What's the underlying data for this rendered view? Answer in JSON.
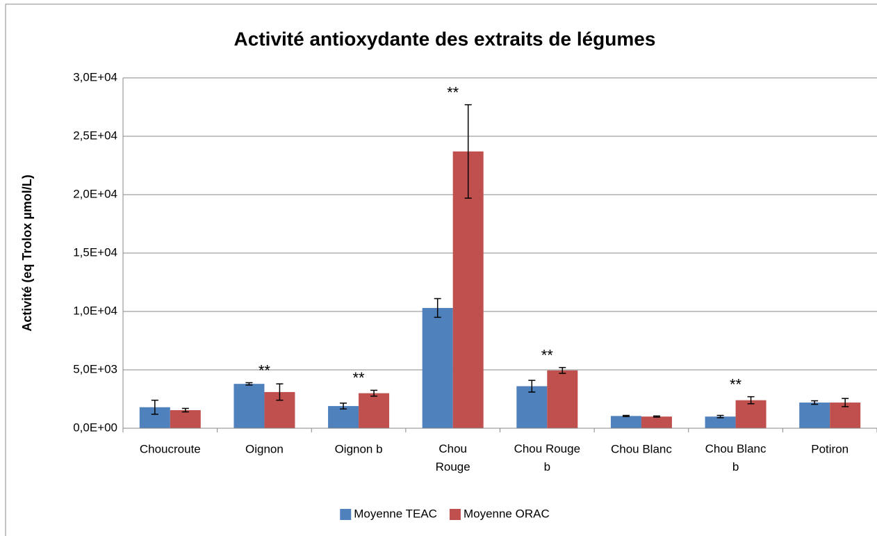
{
  "chart_data": {
    "type": "bar",
    "title": "Activité antioxydante des extraits de légumes",
    "ylabel": "Activité (eq Trolox µmol/L)",
    "categories": [
      "Choucroute",
      "Oignon",
      "Oignon b",
      "Chou Rouge",
      "Chou Rouge b",
      "Chou Blanc",
      "Chou Blanc b",
      "Potiron"
    ],
    "series": [
      {
        "name": "Moyenne TEAC",
        "color": "#4f81bd",
        "values": [
          1800,
          3800,
          1900,
          10300,
          3600,
          1050,
          1000,
          2200
        ],
        "errors": [
          600,
          100,
          250,
          800,
          500,
          50,
          100,
          150
        ]
      },
      {
        "name": "Moyenne ORAC",
        "color": "#c0504d",
        "values": [
          1550,
          3100,
          3000,
          23700,
          4950,
          1000,
          2400,
          2200
        ],
        "errors": [
          150,
          700,
          250,
          4000,
          250,
          50,
          300,
          350
        ]
      }
    ],
    "annotations": [
      null,
      "**",
      "**",
      "**",
      "**",
      null,
      "**",
      null
    ],
    "ylim": [
      0,
      30000
    ],
    "yticks": [
      {
        "value": 0,
        "label": "0,0E+00"
      },
      {
        "value": 5000,
        "label": "5,0E+03"
      },
      {
        "value": 10000,
        "label": "1,0E+04"
      },
      {
        "value": 15000,
        "label": "1,5E+04"
      },
      {
        "value": 20000,
        "label": "2,0E+04"
      },
      {
        "value": 25000,
        "label": "2,5E+04"
      },
      {
        "value": 30000,
        "label": "3,0E+04"
      }
    ],
    "grid": true,
    "legend": "bottom"
  }
}
